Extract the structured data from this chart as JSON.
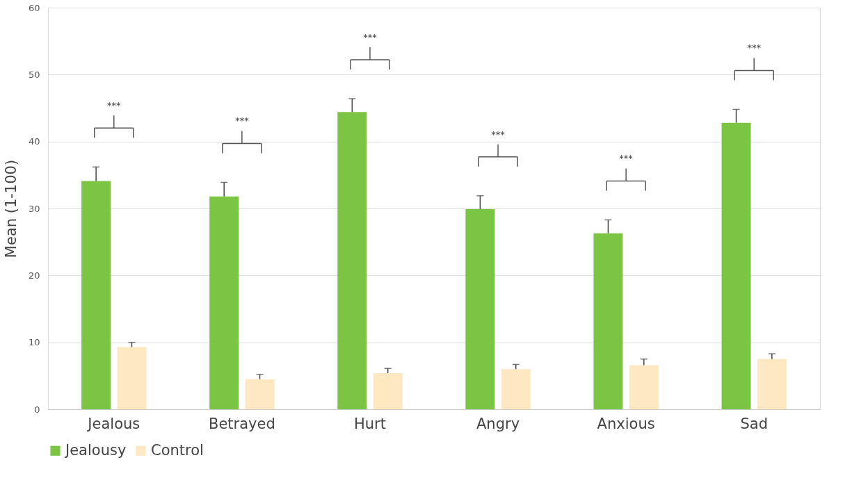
{
  "chart_data": {
    "type": "bar",
    "ylabel": "Mean (1-100)",
    "categories": [
      "Jealous",
      "Betrayed",
      "Hurt",
      "Angry",
      "Anxious",
      "Sad"
    ],
    "series": [
      {
        "name": "Jealousy",
        "color": "#7cc444",
        "values": [
          34.1,
          31.8,
          44.4,
          29.9,
          26.3,
          42.8
        ],
        "errors": [
          [
            34.1,
            36.2
          ],
          [
            31.8,
            33.9
          ],
          [
            44.4,
            46.4
          ],
          [
            29.9,
            31.9
          ],
          [
            26.3,
            28.3
          ],
          [
            42.8,
            44.8
          ]
        ]
      },
      {
        "name": "Control",
        "color": "#fde8c2",
        "values": [
          9.3,
          4.5,
          5.4,
          6.0,
          6.6,
          7.5
        ],
        "errors": [
          [
            9.3,
            10.0
          ],
          [
            4.5,
            5.2
          ],
          [
            5.4,
            6.1
          ],
          [
            6.0,
            6.7
          ],
          [
            6.6,
            7.5
          ],
          [
            7.5,
            8.3
          ]
        ]
      }
    ],
    "ylim": [
      0,
      60
    ],
    "yticks": [
      0,
      10,
      20,
      30,
      40,
      50,
      60
    ],
    "grid": "y",
    "legend": "bottom",
    "annotations": [
      "***",
      "***",
      "***",
      "***",
      "***",
      "***"
    ]
  }
}
